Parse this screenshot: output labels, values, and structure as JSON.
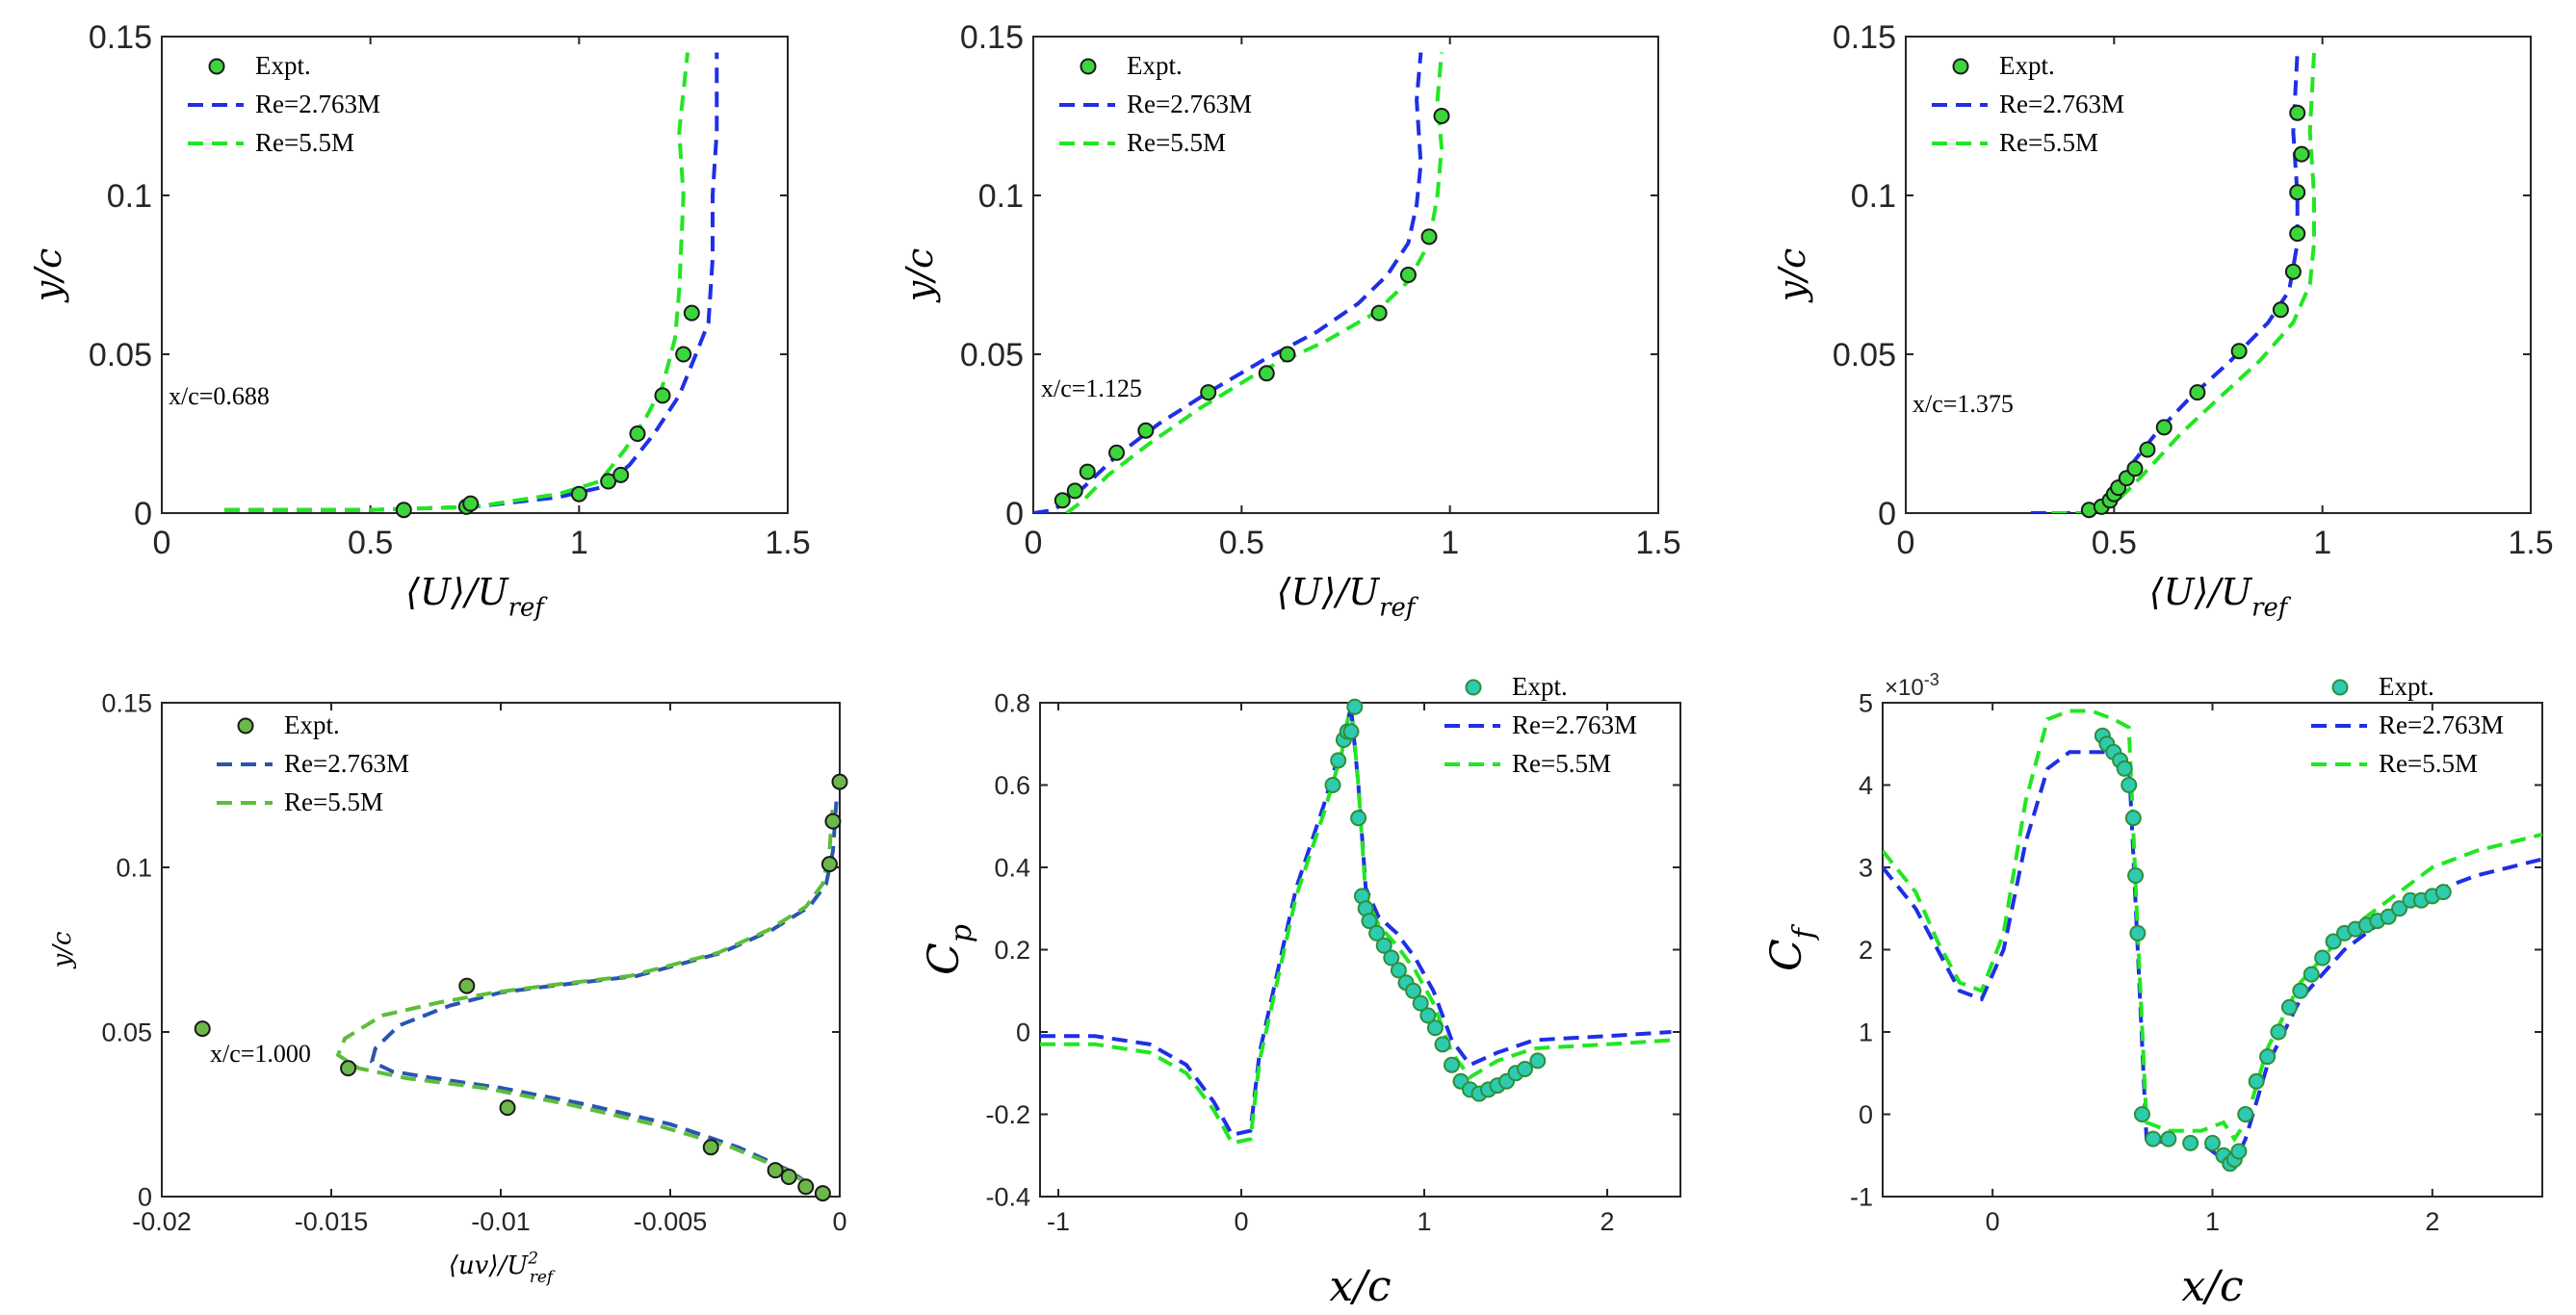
{
  "figure_colors": {
    "blue": "#1f2fe6",
    "green": "#22e622",
    "blue_dark": "#2a55b0",
    "green_olive": "#5ebd3a",
    "marker_green": "#3bd63b",
    "marker_olive": "#6cb84a",
    "marker_cyan": "#2ecbb0"
  },
  "chart_data": [
    {
      "type": "line",
      "panel": "a",
      "xlabel": "⟨U⟩/U_ref",
      "ylabel": "y/c",
      "xlim": [
        0,
        1.5
      ],
      "ylim": [
        0,
        0.15
      ],
      "xticks": [
        0,
        0.5,
        1,
        1.5
      ],
      "xtick_labels": [
        "0",
        "0.5",
        "1",
        "1.5"
      ],
      "yticks": [
        0,
        0.05,
        0.1,
        0.15
      ],
      "ytick_labels": [
        "0",
        "0.05",
        "0.1",
        "0.15"
      ],
      "annotation": "x/c=0.688",
      "legend": [
        "Expt.",
        "Re=2.763M",
        "Re=5.5M"
      ],
      "expt": {
        "x": [
          0.58,
          0.73,
          0.74,
          1.0,
          1.07,
          1.1,
          1.14,
          1.2,
          1.25,
          1.27
        ],
        "y": [
          0.001,
          0.002,
          0.003,
          0.006,
          0.01,
          0.012,
          0.025,
          0.037,
          0.05,
          0.063
        ]
      },
      "series": [
        {
          "name": "Re=2.763M",
          "x": [
            0.15,
            0.5,
            0.75,
            0.95,
            1.05,
            1.12,
            1.18,
            1.24,
            1.28,
            1.31,
            1.32,
            1.32,
            1.33,
            1.33
          ],
          "y": [
            0.001,
            0.001,
            0.002,
            0.005,
            0.008,
            0.015,
            0.025,
            0.037,
            0.05,
            0.06,
            0.08,
            0.1,
            0.12,
            0.145
          ]
        },
        {
          "name": "Re=5.5M",
          "x": [
            0.15,
            0.5,
            0.75,
            0.95,
            1.05,
            1.11,
            1.16,
            1.2,
            1.23,
            1.24,
            1.245,
            1.25,
            1.24,
            1.26
          ],
          "y": [
            0.001,
            0.001,
            0.002,
            0.006,
            0.01,
            0.02,
            0.03,
            0.04,
            0.055,
            0.07,
            0.085,
            0.1,
            0.12,
            0.145
          ]
        }
      ]
    },
    {
      "type": "line",
      "panel": "b",
      "xlabel": "⟨U⟩/U_ref",
      "ylabel": "y/c",
      "xlim": [
        0,
        1.5
      ],
      "ylim": [
        0,
        0.15
      ],
      "xticks": [
        0,
        0.5,
        1,
        1.5
      ],
      "xtick_labels": [
        "0",
        "0.5",
        "1",
        "1.5"
      ],
      "yticks": [
        0,
        0.05,
        0.1,
        0.15
      ],
      "ytick_labels": [
        "0",
        "0.05",
        "0.1",
        "0.15"
      ],
      "annotation": "x/c=1.125",
      "legend": [
        "Expt.",
        "Re=2.763M",
        "Re=5.5M"
      ],
      "expt": {
        "x": [
          0.07,
          0.1,
          0.13,
          0.2,
          0.27,
          0.42,
          0.56,
          0.61,
          0.83,
          0.9,
          0.95,
          0.98
        ],
        "y": [
          0.004,
          0.007,
          0.013,
          0.019,
          0.026,
          0.038,
          0.044,
          0.05,
          0.063,
          0.075,
          0.087,
          0.125
        ]
      },
      "series": [
        {
          "name": "Re=2.763M",
          "x": [
            0.0,
            0.05,
            0.12,
            0.2,
            0.3,
            0.42,
            0.55,
            0.68,
            0.78,
            0.85,
            0.9,
            0.92,
            0.93,
            0.92,
            0.93
          ],
          "y": [
            0.0,
            0.001,
            0.008,
            0.018,
            0.028,
            0.038,
            0.048,
            0.057,
            0.066,
            0.075,
            0.085,
            0.097,
            0.11,
            0.13,
            0.145
          ]
        },
        {
          "name": "Re=5.5M",
          "x": [
            0.08,
            0.12,
            0.18,
            0.28,
            0.4,
            0.55,
            0.7,
            0.82,
            0.9,
            0.95,
            0.97,
            0.98,
            0.97,
            0.98
          ],
          "y": [
            0.0,
            0.004,
            0.012,
            0.022,
            0.033,
            0.045,
            0.054,
            0.063,
            0.073,
            0.085,
            0.1,
            0.115,
            0.13,
            0.145
          ]
        }
      ]
    },
    {
      "type": "line",
      "panel": "c",
      "xlabel": "⟨U⟩/U_ref",
      "ylabel": "y/c",
      "xlim": [
        0,
        1.5
      ],
      "ylim": [
        0,
        0.15
      ],
      "xticks": [
        0,
        0.5,
        1,
        1.5
      ],
      "xtick_labels": [
        "0",
        "0.5",
        "1",
        "1.5"
      ],
      "yticks": [
        0,
        0.05,
        0.1,
        0.15
      ],
      "ytick_labels": [
        "0",
        "0.05",
        "0.1",
        "0.15"
      ],
      "annotation": "x/c=1.375",
      "legend": [
        "Expt.",
        "Re=2.763M",
        "Re=5.5M"
      ],
      "expt": {
        "x": [
          0.44,
          0.47,
          0.49,
          0.5,
          0.51,
          0.53,
          0.55,
          0.58,
          0.62,
          0.7,
          0.8,
          0.9,
          0.93,
          0.94,
          0.94,
          0.95,
          0.94
        ],
        "y": [
          0.001,
          0.002,
          0.004,
          0.006,
          0.008,
          0.011,
          0.014,
          0.02,
          0.027,
          0.038,
          0.051,
          0.064,
          0.076,
          0.088,
          0.101,
          0.113,
          0.126
        ]
      },
      "series": [
        {
          "name": "Re=2.763M",
          "x": [
            0.3,
            0.42,
            0.47,
            0.5,
            0.54,
            0.6,
            0.68,
            0.78,
            0.87,
            0.92,
            0.94,
            0.94,
            0.93,
            0.94
          ],
          "y": [
            0.0,
            0.0,
            0.003,
            0.008,
            0.015,
            0.025,
            0.036,
            0.048,
            0.06,
            0.07,
            0.085,
            0.1,
            0.12,
            0.145
          ]
        },
        {
          "name": "Re=5.5M",
          "x": [
            0.35,
            0.45,
            0.5,
            0.54,
            0.59,
            0.66,
            0.75,
            0.85,
            0.93,
            0.97,
            0.98,
            0.98,
            0.97,
            0.98
          ],
          "y": [
            0.0,
            0.0,
            0.003,
            0.008,
            0.015,
            0.025,
            0.036,
            0.048,
            0.06,
            0.072,
            0.085,
            0.1,
            0.12,
            0.145
          ]
        }
      ]
    },
    {
      "type": "line",
      "panel": "d",
      "xlabel": "⟨uv⟩/U²_ref",
      "ylabel": "y/c",
      "xlim": [
        -0.02,
        0
      ],
      "ylim": [
        0,
        0.15
      ],
      "xticks": [
        -0.02,
        -0.015,
        -0.01,
        -0.005,
        0
      ],
      "xtick_labels": [
        "-0.02",
        "-0.015",
        "-0.01",
        "-0.005",
        "0"
      ],
      "yticks": [
        0,
        0.05,
        0.1,
        0.15
      ],
      "ytick_labels": [
        "0",
        "0.05",
        "0.1",
        "0.15"
      ],
      "annotation": "x/c=1.000",
      "legend": [
        "Expt.",
        "Re=2.763M",
        "Re=5.5M"
      ],
      "expt": {
        "x": [
          -0.0188,
          -0.0145,
          -0.011,
          -0.0098,
          -0.0038,
          -0.0019,
          -0.0015,
          -0.001,
          -0.0005,
          -0.0003,
          -0.0002,
          0.0
        ],
        "y": [
          0.051,
          0.039,
          0.064,
          0.027,
          0.015,
          0.008,
          0.006,
          0.003,
          0.001,
          0.101,
          0.114,
          0.126
        ]
      },
      "series": [
        {
          "name": "Re=2.763M",
          "x": [
            -0.0003,
            -0.0008,
            -0.0015,
            -0.003,
            -0.005,
            -0.0075,
            -0.01,
            -0.012,
            -0.0132,
            -0.0138,
            -0.0137,
            -0.013,
            -0.0115,
            -0.01,
            -0.0085,
            -0.006,
            -0.0035,
            -0.002,
            -0.0009,
            -0.0004,
            -0.0002,
            -0.0001
          ],
          "y": [
            0.0,
            0.003,
            0.008,
            0.015,
            0.022,
            0.028,
            0.033,
            0.036,
            0.038,
            0.041,
            0.045,
            0.052,
            0.058,
            0.062,
            0.064,
            0.067,
            0.074,
            0.081,
            0.088,
            0.095,
            0.105,
            0.12
          ]
        },
        {
          "name": "Re=5.5M",
          "x": [
            -0.0003,
            -0.0008,
            -0.0016,
            -0.0032,
            -0.0055,
            -0.008,
            -0.0105,
            -0.0128,
            -0.0142,
            -0.0148,
            -0.0146,
            -0.0135,
            -0.0118,
            -0.0102,
            -0.0087,
            -0.0062,
            -0.0036,
            -0.0021,
            -0.001,
            -0.0005,
            -0.0003,
            -0.0002
          ],
          "y": [
            0.0,
            0.003,
            0.008,
            0.015,
            0.022,
            0.028,
            0.033,
            0.036,
            0.039,
            0.043,
            0.048,
            0.055,
            0.059,
            0.062,
            0.064,
            0.067,
            0.074,
            0.081,
            0.088,
            0.095,
            0.105,
            0.12
          ]
        }
      ]
    },
    {
      "type": "line",
      "panel": "e",
      "xlabel": "x/c",
      "ylabel": "C_p",
      "xlim": [
        -1.1,
        2.4
      ],
      "ylim": [
        -0.4,
        0.8
      ],
      "xticks": [
        -1,
        0,
        1,
        2
      ],
      "xtick_labels": [
        "-1",
        "0",
        "1",
        "2"
      ],
      "yticks": [
        -0.4,
        -0.2,
        0,
        0.2,
        0.4,
        0.6,
        0.8
      ],
      "ytick_labels": [
        "-0.4",
        "-0.2",
        "0",
        "0.2",
        "0.4",
        "0.6",
        "0.8"
      ],
      "legend": [
        "Expt.",
        "Re=2.763M",
        "Re=5.5M"
      ],
      "expt": {
        "x": [
          0.5,
          0.53,
          0.56,
          0.58,
          0.6,
          0.62,
          0.64,
          0.66,
          0.68,
          0.7,
          0.74,
          0.78,
          0.82,
          0.86,
          0.9,
          0.94,
          0.98,
          1.02,
          1.06,
          1.1,
          1.15,
          1.2,
          1.25,
          1.3,
          1.35,
          1.4,
          1.45,
          1.5,
          1.55,
          1.62
        ],
        "y": [
          0.6,
          0.66,
          0.71,
          0.73,
          0.73,
          0.79,
          0.52,
          0.33,
          0.3,
          0.27,
          0.24,
          0.21,
          0.18,
          0.15,
          0.12,
          0.1,
          0.07,
          0.04,
          0.01,
          -0.03,
          -0.08,
          -0.12,
          -0.14,
          -0.15,
          -0.14,
          -0.13,
          -0.12,
          -0.1,
          -0.09,
          -0.07
        ]
      },
      "series": [
        {
          "name": "Re=2.763M",
          "x": [
            -1.1,
            -0.8,
            -0.5,
            -0.3,
            -0.15,
            -0.05,
            0.05,
            0.1,
            0.2,
            0.3,
            0.45,
            0.55,
            0.6,
            0.64,
            0.68,
            0.75,
            0.85,
            0.95,
            1.05,
            1.15,
            1.25,
            1.4,
            1.6,
            2.0,
            2.35
          ],
          "y": [
            -0.01,
            -0.01,
            -0.03,
            -0.08,
            -0.17,
            -0.25,
            -0.24,
            -0.05,
            0.15,
            0.35,
            0.55,
            0.7,
            0.79,
            0.6,
            0.35,
            0.28,
            0.24,
            0.18,
            0.1,
            -0.02,
            -0.08,
            -0.05,
            -0.02,
            -0.01,
            0.0
          ]
        },
        {
          "name": "Re=5.5M",
          "x": [
            -1.1,
            -0.8,
            -0.5,
            -0.3,
            -0.15,
            -0.05,
            0.05,
            0.1,
            0.2,
            0.3,
            0.45,
            0.55,
            0.6,
            0.64,
            0.68,
            0.75,
            0.85,
            0.95,
            1.05,
            1.15,
            1.25,
            1.4,
            1.6,
            2.0,
            2.35
          ],
          "y": [
            -0.03,
            -0.03,
            -0.05,
            -0.1,
            -0.19,
            -0.27,
            -0.26,
            -0.07,
            0.13,
            0.33,
            0.53,
            0.68,
            0.8,
            0.6,
            0.33,
            0.26,
            0.21,
            0.15,
            0.07,
            -0.05,
            -0.11,
            -0.07,
            -0.04,
            -0.03,
            -0.02
          ]
        }
      ]
    },
    {
      "type": "line",
      "panel": "f",
      "xlabel": "x/c",
      "ylabel": "C_f",
      "xlim": [
        -0.5,
        2.5
      ],
      "ylim": [
        -1,
        5
      ],
      "xticks": [
        0,
        1,
        2
      ],
      "xtick_labels": [
        "0",
        "1",
        "2"
      ],
      "yticks": [
        -1,
        0,
        1,
        2,
        3,
        4,
        5
      ],
      "ytick_labels": [
        "-1",
        "0",
        "1",
        "2",
        "3",
        "4",
        "5"
      ],
      "scale_label": "×10",
      "scale_exp": "-3",
      "legend": [
        "Expt.",
        "Re=2.763M",
        "Re=5.5M"
      ],
      "expt": {
        "x": [
          0.5,
          0.52,
          0.55,
          0.58,
          0.6,
          0.62,
          0.64,
          0.65,
          0.66,
          0.68,
          0.73,
          0.8,
          0.9,
          1.0,
          1.05,
          1.08,
          1.1,
          1.12,
          1.15,
          1.2,
          1.25,
          1.3,
          1.35,
          1.4,
          1.45,
          1.5,
          1.55,
          1.6,
          1.65,
          1.7,
          1.75,
          1.8,
          1.85,
          1.9,
          1.95,
          2.0,
          2.05
        ],
        "y": [
          4.6,
          4.5,
          4.4,
          4.3,
          4.2,
          4.0,
          3.6,
          2.9,
          2.2,
          0.0,
          -0.3,
          -0.3,
          -0.35,
          -0.35,
          -0.5,
          -0.6,
          -0.55,
          -0.45,
          0.0,
          0.4,
          0.7,
          1.0,
          1.3,
          1.5,
          1.7,
          1.9,
          2.1,
          2.2,
          2.25,
          2.3,
          2.35,
          2.4,
          2.5,
          2.6,
          2.6,
          2.65,
          2.7
        ]
      },
      "series": [
        {
          "name": "Re=2.763M",
          "x": [
            -0.5,
            -0.35,
            -0.25,
            -0.15,
            -0.05,
            0.05,
            0.15,
            0.25,
            0.35,
            0.45,
            0.55,
            0.62,
            0.66,
            0.7,
            0.8,
            0.95,
            1.05,
            1.1,
            1.15,
            1.25,
            1.4,
            1.6,
            1.8,
            2.0,
            2.2,
            2.5
          ],
          "y": [
            3.0,
            2.5,
            2.0,
            1.5,
            1.4,
            2.0,
            3.3,
            4.2,
            4.4,
            4.4,
            4.4,
            4.3,
            2.0,
            -0.3,
            -0.35,
            -0.35,
            -0.55,
            -0.6,
            -0.3,
            0.6,
            1.4,
            2.0,
            2.4,
            2.7,
            2.9,
            3.1
          ]
        },
        {
          "name": "Re=5.5M",
          "x": [
            -0.5,
            -0.35,
            -0.25,
            -0.15,
            -0.05,
            0.05,
            0.15,
            0.25,
            0.35,
            0.45,
            0.55,
            0.62,
            0.66,
            0.7,
            0.8,
            0.95,
            1.05,
            1.1,
            1.15,
            1.25,
            1.4,
            1.6,
            1.8,
            2.0,
            2.2,
            2.5
          ],
          "y": [
            3.2,
            2.7,
            2.1,
            1.6,
            1.5,
            2.2,
            3.8,
            4.8,
            4.9,
            4.9,
            4.8,
            4.7,
            2.2,
            -0.1,
            -0.2,
            -0.2,
            -0.1,
            -0.3,
            -0.1,
            0.8,
            1.6,
            2.2,
            2.6,
            3.0,
            3.2,
            3.4
          ]
        }
      ]
    }
  ]
}
